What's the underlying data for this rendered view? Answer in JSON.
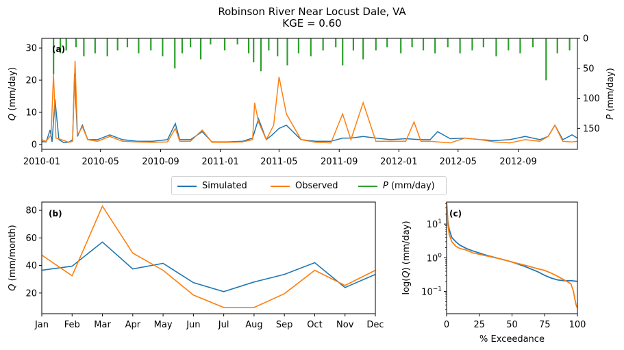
{
  "figure": {
    "title_line1": "Robinson River Near Locust Dale, VA",
    "title_line2": "KGE = 0.60",
    "colors": {
      "simulated": "#1f77b4",
      "observed": "#ff7f0e",
      "precip": "#2ca02c"
    }
  },
  "legend": {
    "entries": [
      {
        "label": "Simulated",
        "color": "#1f77b4"
      },
      {
        "label": "Observed",
        "color": "#ff7f0e"
      },
      {
        "label_var": "P",
        "label_rest": " (mm/day)",
        "color": "#2ca02c"
      }
    ]
  },
  "chart_data": [
    {
      "panel": "(a)",
      "type": "line",
      "ylabel_var": "Q",
      "ylabel_rest": " (mm/day)",
      "y2label_var": "P",
      "y2label_rest": " (mm/day)",
      "ylim": [
        -1.5,
        33
      ],
      "yticks": [
        0,
        10,
        20,
        30
      ],
      "y2lim_inverted": [
        185,
        0
      ],
      "y2ticks": [
        0,
        50,
        100,
        150
      ],
      "xlim": [
        "2010-01-01",
        "2012-12-31"
      ],
      "xticks": [
        "2010-01",
        "2010-05",
        "2010-09",
        "2011-01",
        "2011-05",
        "2011-09",
        "2012-01",
        "2012-05",
        "2012-09"
      ],
      "series": [
        {
          "name": "Simulated",
          "color": "#1f77b4",
          "x": [
            "2010-01-01",
            "2010-01-10",
            "2010-01-18",
            "2010-01-22",
            "2010-01-28",
            "2010-02-05",
            "2010-02-15",
            "2010-02-25",
            "2010-03-05",
            "2010-03-09",
            "2010-03-15",
            "2010-03-25",
            "2010-04-05",
            "2010-04-25",
            "2010-05-20",
            "2010-06-15",
            "2010-07-15",
            "2010-08-15",
            "2010-09-15",
            "2010-10-01",
            "2010-10-10",
            "2010-11-01",
            "2010-11-25",
            "2010-12-15",
            "2011-01-15",
            "2011-02-15",
            "2011-03-08",
            "2011-03-20",
            "2011-04-05",
            "2011-04-17",
            "2011-05-01",
            "2011-05-16",
            "2011-06-15",
            "2011-07-15",
            "2011-08-15",
            "2011-09-08",
            "2011-09-25",
            "2011-10-20",
            "2011-11-15",
            "2011-12-15",
            "2012-01-15",
            "2012-02-15",
            "2012-03-05",
            "2012-03-20",
            "2012-04-15",
            "2012-05-15",
            "2012-06-15",
            "2012-07-15",
            "2012-08-15",
            "2012-09-15",
            "2012-10-15",
            "2012-11-01",
            "2012-11-15",
            "2012-12-01",
            "2012-12-20",
            "2012-12-31"
          ],
          "y": [
            0.9,
            0.8,
            4.5,
            0.8,
            14,
            1.5,
            0.6,
            0.7,
            1.5,
            22,
            2.5,
            6,
            1.5,
            1.5,
            3,
            1.5,
            1,
            1,
            1.5,
            6.5,
            1.5,
            1.5,
            4,
            0.8,
            0.8,
            1,
            2,
            8,
            1.5,
            3,
            5,
            6,
            1.5,
            1,
            1,
            2,
            2,
            2.5,
            2,
            1.5,
            1.8,
            1.5,
            1.5,
            4,
            1.8,
            2,
            1.5,
            1.2,
            1.5,
            2.5,
            1.5,
            2.5,
            6,
            1.5,
            3,
            2
          ]
        },
        {
          "name": "Observed",
          "color": "#ff7f0e",
          "x": [
            "2010-01-01",
            "2010-01-10",
            "2010-01-20",
            "2010-01-25",
            "2010-01-30",
            "2010-02-10",
            "2010-02-25",
            "2010-03-05",
            "2010-03-10",
            "2010-03-15",
            "2010-03-25",
            "2010-04-05",
            "2010-04-25",
            "2010-05-20",
            "2010-06-15",
            "2010-07-15",
            "2010-08-15",
            "2010-09-15",
            "2010-10-01",
            "2010-10-10",
            "2010-11-01",
            "2010-11-25",
            "2010-12-15",
            "2011-01-15",
            "2011-02-15",
            "2011-03-08",
            "2011-03-12",
            "2011-03-20",
            "2011-04-05",
            "2011-04-20",
            "2011-05-01",
            "2011-05-16",
            "2011-06-15",
            "2011-07-15",
            "2011-08-15",
            "2011-09-08",
            "2011-09-25",
            "2011-10-20",
            "2011-11-15",
            "2011-12-15",
            "2012-01-15",
            "2012-02-01",
            "2012-02-15",
            "2012-03-05",
            "2012-04-15",
            "2012-05-15",
            "2012-06-15",
            "2012-07-15",
            "2012-08-15",
            "2012-09-15",
            "2012-10-15",
            "2012-11-01",
            "2012-11-15",
            "2012-12-01",
            "2012-12-20",
            "2012-12-31"
          ],
          "y": [
            1.5,
            1,
            3,
            22,
            2,
            1.5,
            0.7,
            1,
            26,
            3,
            5.5,
            1.5,
            1,
            2.5,
            1,
            0.8,
            0.7,
            0.8,
            5,
            1,
            1,
            4.5,
            0.7,
            0.7,
            0.8,
            1.5,
            13,
            7,
            1.5,
            6,
            21,
            9.5,
            1.5,
            0.7,
            0.5,
            9.5,
            1.5,
            13,
            1,
            1,
            1,
            7,
            1,
            1,
            0.5,
            2,
            1.5,
            0.8,
            0.5,
            1.5,
            1,
            2.5,
            6,
            1,
            0.8,
            1
          ]
        },
        {
          "name": "P (mm/day)",
          "color": "#2ca02c",
          "x": [
            "2010-01-25",
            "2010-02-08",
            "2010-02-20",
            "2010-03-12",
            "2010-03-28",
            "2010-04-20",
            "2010-05-15",
            "2010-06-05",
            "2010-06-25",
            "2010-07-18",
            "2010-08-12",
            "2010-09-05",
            "2010-09-30",
            "2010-10-15",
            "2010-11-01",
            "2010-11-22",
            "2010-12-12",
            "2011-01-10",
            "2011-02-05",
            "2011-02-28",
            "2011-03-10",
            "2011-03-25",
            "2011-04-10",
            "2011-04-28",
            "2011-05-18",
            "2011-06-10",
            "2011-07-05",
            "2011-07-30",
            "2011-08-25",
            "2011-09-08",
            "2011-09-30",
            "2011-10-20",
            "2011-11-15",
            "2011-12-08",
            "2012-01-05",
            "2012-01-28",
            "2012-02-20",
            "2012-03-15",
            "2012-04-10",
            "2012-05-05",
            "2012-05-30",
            "2012-06-22",
            "2012-07-18",
            "2012-08-12",
            "2012-09-05",
            "2012-10-01",
            "2012-10-28",
            "2012-11-20",
            "2012-12-15"
          ],
          "y": [
            60,
            25,
            20,
            15,
            30,
            25,
            30,
            20,
            15,
            25,
            20,
            30,
            50,
            25,
            15,
            35,
            10,
            20,
            10,
            25,
            40,
            55,
            20,
            30,
            45,
            25,
            30,
            20,
            15,
            45,
            20,
            35,
            20,
            15,
            25,
            15,
            20,
            25,
            15,
            25,
            20,
            15,
            30,
            20,
            25,
            15,
            70,
            25,
            20
          ]
        }
      ]
    },
    {
      "panel": "(b)",
      "type": "line",
      "ylabel_var": "Q",
      "ylabel_rest": " (mm/month)",
      "categories": [
        "Jan",
        "Feb",
        "Mar",
        "Apr",
        "May",
        "Jun",
        "Jul",
        "Aug",
        "Sep",
        "Oct",
        "Nov",
        "Dec"
      ],
      "ylim": [
        5,
        86
      ],
      "yticks": [
        20,
        40,
        60,
        80
      ],
      "series": [
        {
          "name": "Simulated",
          "color": "#1f77b4",
          "values": [
            36.5,
            39.5,
            57,
            37.5,
            41.5,
            27.5,
            21,
            28,
            33.5,
            42,
            24,
            33.5
          ]
        },
        {
          "name": "Observed",
          "color": "#ff7f0e",
          "values": [
            47.5,
            32.5,
            83,
            49,
            36.5,
            18.5,
            9.5,
            9.5,
            19.5,
            36.5,
            25.5,
            36.5
          ]
        }
      ]
    },
    {
      "panel": "(c)",
      "type": "line",
      "xlabel": "% Exceedance",
      "ylabel_pre": "log(",
      "ylabel_var": "Q",
      "ylabel_rest": ") (mm/day)",
      "yscale": "log",
      "xlim": [
        0,
        100
      ],
      "xticks": [
        0,
        25,
        50,
        75,
        100
      ],
      "ylim": [
        0.022,
        45
      ],
      "yticks": [
        0.1,
        1,
        10
      ],
      "yticklabels": [
        "10",
        "10",
        "10"
      ],
      "yticksup": [
        "−1",
        "0",
        "1"
      ],
      "series": [
        {
          "name": "Simulated",
          "color": "#1f77b4",
          "x": [
            0,
            1,
            2,
            4,
            7,
            10,
            15,
            20,
            30,
            40,
            50,
            60,
            70,
            75,
            80,
            85,
            90,
            95,
            100
          ],
          "y": [
            40,
            12,
            7,
            4,
            3,
            2.4,
            1.9,
            1.6,
            1.2,
            0.95,
            0.75,
            0.55,
            0.38,
            0.3,
            0.25,
            0.22,
            0.21,
            0.21,
            0.2
          ]
        },
        {
          "name": "Observed",
          "color": "#ff7f0e",
          "x": [
            0,
            0.5,
            1,
            2,
            4,
            7,
            10,
            15,
            20,
            30,
            40,
            50,
            60,
            70,
            75,
            80,
            85,
            90,
            95,
            97,
            98,
            99,
            100
          ],
          "y": [
            45,
            25,
            10,
            5,
            3,
            2.2,
            1.9,
            1.7,
            1.4,
            1.15,
            0.95,
            0.75,
            0.6,
            0.47,
            0.42,
            0.35,
            0.28,
            0.22,
            0.17,
            0.1,
            0.06,
            0.04,
            0.032
          ]
        }
      ]
    }
  ]
}
